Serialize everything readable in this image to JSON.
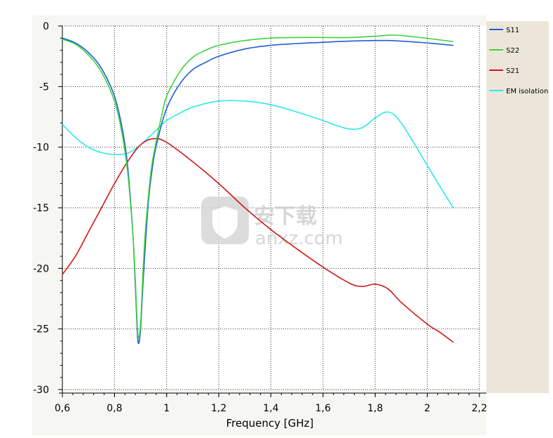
{
  "chart_data": {
    "type": "line",
    "xlabel": "Frequency [GHz]",
    "ylabel": "",
    "xlim": [
      0.6,
      2.2
    ],
    "ylim": [
      -30,
      0
    ],
    "xticks": [
      "0,6",
      "0,8",
      "1",
      "1,2",
      "1,4",
      "1,6",
      "1,8",
      "2",
      "2,2"
    ],
    "yticks": [
      "0",
      "-5",
      "-10",
      "-15",
      "-20",
      "-25",
      "-30"
    ],
    "xtick_values": [
      0.6,
      0.8,
      1.0,
      1.2,
      1.4,
      1.6,
      1.8,
      2.0,
      2.2
    ],
    "ytick_values": [
      0,
      -5,
      -10,
      -15,
      -20,
      -25,
      -30
    ],
    "grid": true,
    "legend_position": "right",
    "series": [
      {
        "name": "S11",
        "color": "#1f5fd6",
        "points": [
          [
            0.6,
            -1.0
          ],
          [
            0.65,
            -1.4
          ],
          [
            0.7,
            -2.2
          ],
          [
            0.75,
            -3.5
          ],
          [
            0.8,
            -5.8
          ],
          [
            0.83,
            -8.5
          ],
          [
            0.85,
            -11.5
          ],
          [
            0.87,
            -17.0
          ],
          [
            0.88,
            -21.5
          ],
          [
            0.89,
            -26.0
          ],
          [
            0.9,
            -25.0
          ],
          [
            0.91,
            -21.0
          ],
          [
            0.93,
            -14.5
          ],
          [
            0.95,
            -11.0
          ],
          [
            0.97,
            -9.0
          ],
          [
            1.0,
            -6.8
          ],
          [
            1.05,
            -4.8
          ],
          [
            1.1,
            -3.6
          ],
          [
            1.15,
            -3.0
          ],
          [
            1.2,
            -2.5
          ],
          [
            1.3,
            -1.9
          ],
          [
            1.4,
            -1.6
          ],
          [
            1.5,
            -1.45
          ],
          [
            1.6,
            -1.35
          ],
          [
            1.7,
            -1.25
          ],
          [
            1.8,
            -1.2
          ],
          [
            1.85,
            -1.2
          ],
          [
            1.9,
            -1.25
          ],
          [
            2.0,
            -1.4
          ],
          [
            2.1,
            -1.6
          ]
        ]
      },
      {
        "name": "S22",
        "color": "#3fd23f",
        "points": [
          [
            0.6,
            -1.1
          ],
          [
            0.65,
            -1.5
          ],
          [
            0.7,
            -2.4
          ],
          [
            0.75,
            -3.8
          ],
          [
            0.8,
            -6.2
          ],
          [
            0.83,
            -9.0
          ],
          [
            0.85,
            -12.0
          ],
          [
            0.87,
            -17.0
          ],
          [
            0.88,
            -21.0
          ],
          [
            0.89,
            -25.5
          ],
          [
            0.9,
            -24.5
          ],
          [
            0.91,
            -20.0
          ],
          [
            0.92,
            -16.5
          ],
          [
            0.94,
            -12.0
          ],
          [
            0.96,
            -9.5
          ],
          [
            0.98,
            -7.5
          ],
          [
            1.0,
            -5.8
          ],
          [
            1.05,
            -3.8
          ],
          [
            1.1,
            -2.6
          ],
          [
            1.15,
            -2.0
          ],
          [
            1.2,
            -1.6
          ],
          [
            1.3,
            -1.2
          ],
          [
            1.4,
            -1.0
          ],
          [
            1.5,
            -0.95
          ],
          [
            1.6,
            -0.95
          ],
          [
            1.7,
            -0.95
          ],
          [
            1.8,
            -0.85
          ],
          [
            1.87,
            -0.75
          ],
          [
            1.95,
            -0.9
          ],
          [
            2.05,
            -1.15
          ],
          [
            2.1,
            -1.3
          ]
        ]
      },
      {
        "name": "S21",
        "color": "#d01818",
        "points": [
          [
            0.6,
            -20.5
          ],
          [
            0.65,
            -19.0
          ],
          [
            0.7,
            -17.0
          ],
          [
            0.75,
            -15.0
          ],
          [
            0.8,
            -13.0
          ],
          [
            0.85,
            -11.2
          ],
          [
            0.9,
            -9.8
          ],
          [
            0.95,
            -9.3
          ],
          [
            1.0,
            -9.6
          ],
          [
            1.1,
            -11.2
          ],
          [
            1.2,
            -13.0
          ],
          [
            1.3,
            -15.0
          ],
          [
            1.4,
            -16.8
          ],
          [
            1.5,
            -18.4
          ],
          [
            1.6,
            -19.9
          ],
          [
            1.7,
            -21.2
          ],
          [
            1.75,
            -21.5
          ],
          [
            1.8,
            -21.3
          ],
          [
            1.85,
            -21.7
          ],
          [
            1.9,
            -22.8
          ],
          [
            2.0,
            -24.6
          ],
          [
            2.05,
            -25.3
          ],
          [
            2.1,
            -26.1
          ]
        ]
      },
      {
        "name": "EM isolation",
        "color": "#2ee8e8",
        "points": [
          [
            0.6,
            -8.1
          ],
          [
            0.65,
            -9.2
          ],
          [
            0.7,
            -10.0
          ],
          [
            0.75,
            -10.45
          ],
          [
            0.8,
            -10.6
          ],
          [
            0.85,
            -10.5
          ],
          [
            0.9,
            -9.8
          ],
          [
            0.95,
            -8.8
          ],
          [
            1.0,
            -7.8
          ],
          [
            1.05,
            -7.2
          ],
          [
            1.1,
            -6.7
          ],
          [
            1.2,
            -6.2
          ],
          [
            1.3,
            -6.2
          ],
          [
            1.4,
            -6.5
          ],
          [
            1.5,
            -7.1
          ],
          [
            1.6,
            -7.8
          ],
          [
            1.65,
            -8.2
          ],
          [
            1.7,
            -8.5
          ],
          [
            1.75,
            -8.4
          ],
          [
            1.8,
            -7.6
          ],
          [
            1.85,
            -7.1
          ],
          [
            1.9,
            -8.0
          ],
          [
            2.0,
            -11.5
          ],
          [
            2.05,
            -13.3
          ],
          [
            2.1,
            -15.0
          ]
        ]
      }
    ]
  },
  "watermark": {
    "text": "安下载",
    "subtext": "anxz.com",
    "icon": "shield-bag-icon"
  }
}
